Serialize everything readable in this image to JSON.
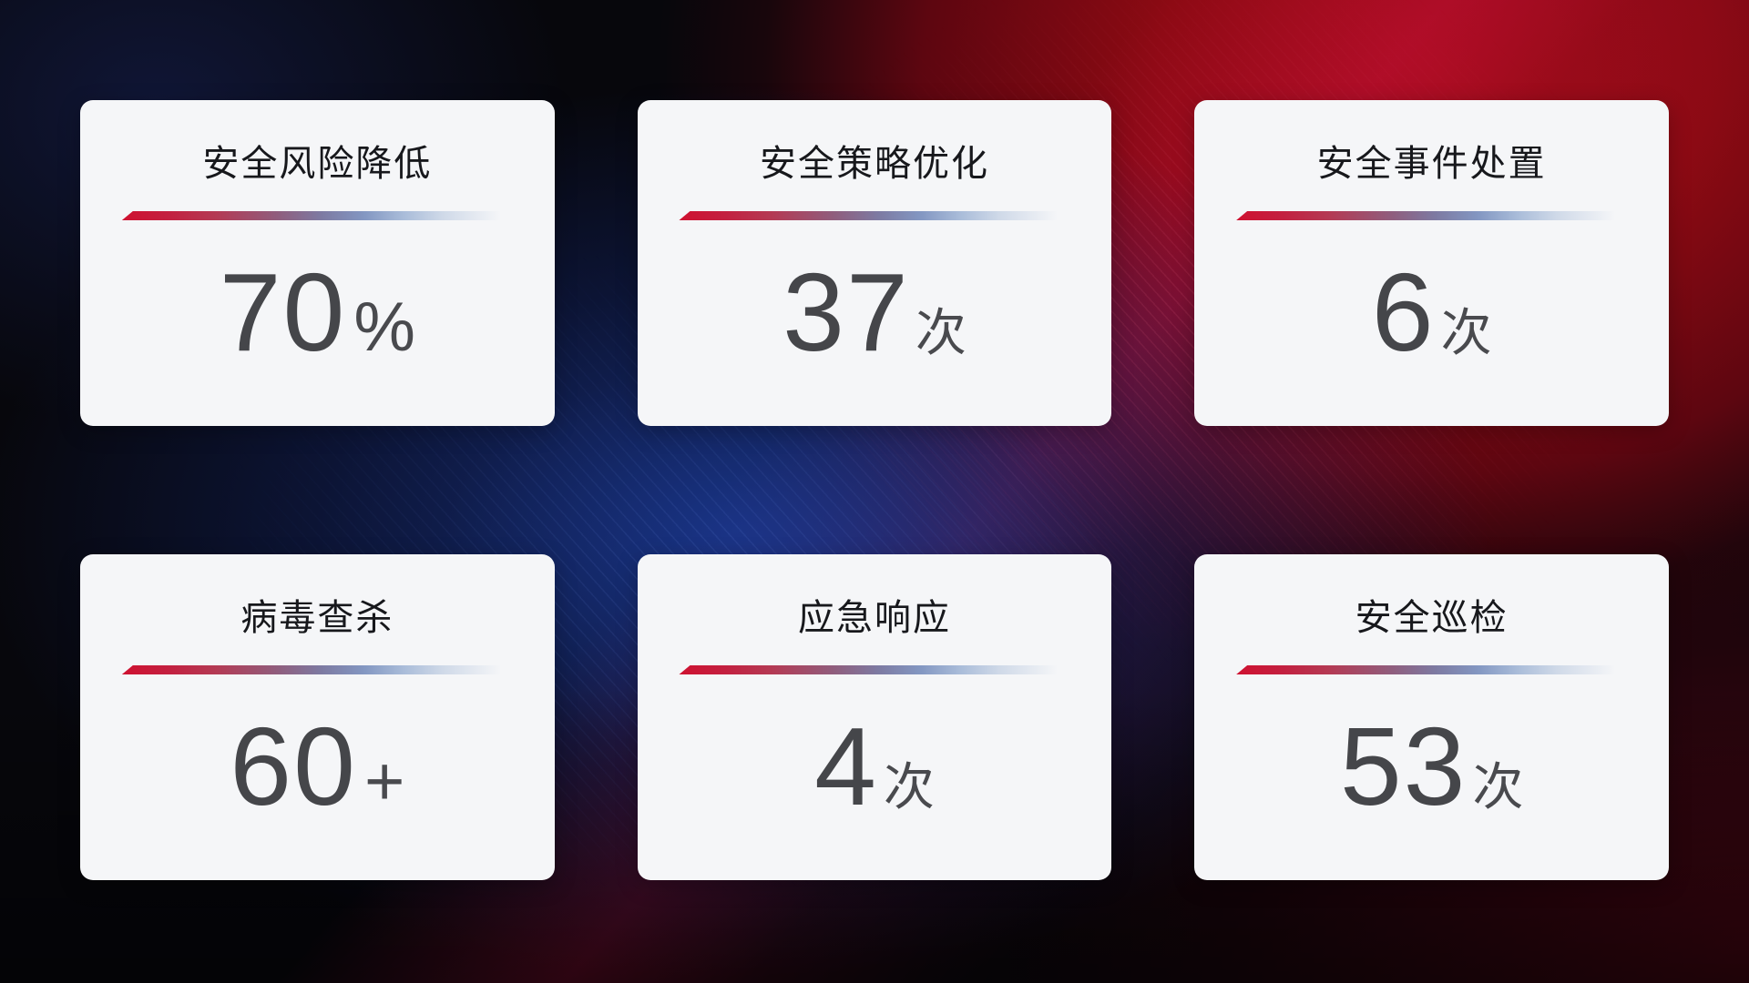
{
  "theme": {
    "card_background": "#f5f6f8",
    "title_color": "#17181c",
    "value_color": "#45464a",
    "divider_gradient_start": "#cf1130",
    "divider_gradient_mid": "#7d7aa2",
    "divider_gradient_end": "#cfd9e8",
    "background_red_glow": "#a60d17",
    "background_blue_glow": "#1b3a98",
    "background_base": "#07070c"
  },
  "cards": [
    {
      "title": "安全风险降低",
      "value": "70",
      "unit": "%"
    },
    {
      "title": "安全策略优化",
      "value": "37",
      "unit": "次"
    },
    {
      "title": "安全事件处置",
      "value": "6",
      "unit": "次"
    },
    {
      "title": "病毒查杀",
      "value": "60",
      "unit": "+"
    },
    {
      "title": "应急响应",
      "value": "4",
      "unit": "次"
    },
    {
      "title": "安全巡检",
      "value": "53",
      "unit": "次"
    }
  ]
}
